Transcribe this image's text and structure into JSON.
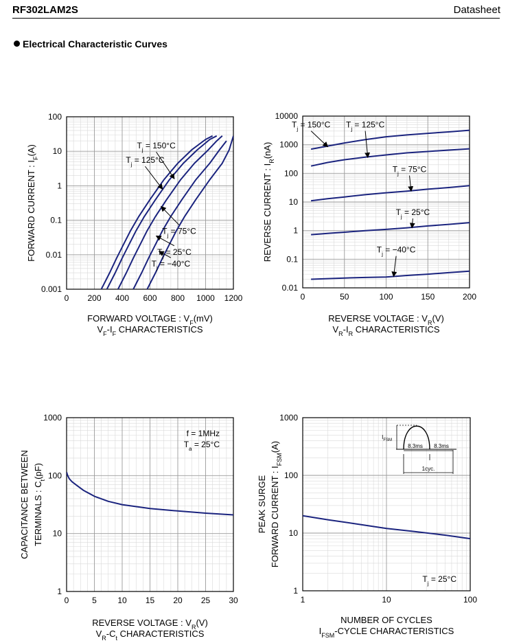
{
  "header": {
    "part_number": "RF302LAM2S",
    "doc_type": "Datasheet"
  },
  "section_title": "Electrical Characteristic Curves",
  "colors": {
    "curve": "#1a237e",
    "grid": "#9a9a9a",
    "minor_grid": "#d9d9d9",
    "axis": "#000000"
  },
  "chart_data": [
    {
      "id": "vf-if",
      "type": "line",
      "title": "VF-IF CHARACTERISTICS",
      "xlabel": "FORWARD VOLTAGE : VF(mV)",
      "ylabel": "FORWARD CURRENT : IF(A)",
      "xscale": "linear",
      "yscale": "log",
      "xlim": [
        0,
        1200
      ],
      "ylim": [
        0.001,
        100
      ],
      "xticks": [
        0,
        200,
        400,
        600,
        800,
        1000,
        1200
      ],
      "xtick_labels": [
        "0",
        "200",
        "400",
        "600",
        "800",
        "1000",
        "1200"
      ],
      "yticks": [
        0.001,
        0.01,
        0.1,
        1,
        10,
        100
      ],
      "ytick_labels": [
        "0.001",
        "0.01",
        "0.1",
        "1",
        "10",
        "100"
      ],
      "grid": true,
      "series": [
        {
          "name": "Tj = 150°C",
          "x": [
            250,
            310,
            360,
            410,
            460,
            520,
            600,
            700,
            800,
            900,
            1000,
            1050
          ],
          "y": [
            0.001,
            0.003,
            0.008,
            0.02,
            0.05,
            0.13,
            0.4,
            1.5,
            4.5,
            11,
            22,
            28
          ]
        },
        {
          "name": "Tj = 125°C",
          "x": [
            290,
            350,
            400,
            450,
            500,
            560,
            640,
            740,
            840,
            940,
            1030,
            1080
          ],
          "y": [
            0.001,
            0.003,
            0.008,
            0.02,
            0.05,
            0.13,
            0.4,
            1.5,
            4.5,
            11,
            22,
            28
          ]
        },
        {
          "name": "Tj = 75°C",
          "x": [
            370,
            430,
            480,
            530,
            580,
            640,
            720,
            820,
            920,
            1020,
            1080,
            1120
          ],
          "y": [
            0.001,
            0.003,
            0.008,
            0.02,
            0.05,
            0.13,
            0.4,
            1.5,
            4.5,
            11,
            20,
            28
          ]
        },
        {
          "name": "Tj = 25°C",
          "x": [
            480,
            540,
            590,
            640,
            690,
            750,
            830,
            930,
            1030,
            1100,
            1150
          ],
          "y": [
            0.001,
            0.003,
            0.008,
            0.02,
            0.05,
            0.13,
            0.4,
            1.5,
            4.5,
            11,
            20
          ]
        },
        {
          "name": "Tj = −40°C",
          "x": [
            580,
            640,
            690,
            740,
            790,
            850,
            930,
            1030,
            1120,
            1170,
            1200
          ],
          "y": [
            0.001,
            0.003,
            0.008,
            0.02,
            0.05,
            0.13,
            0.4,
            1.5,
            4.5,
            11,
            28
          ]
        }
      ],
      "annotations": [
        {
          "label": "Tj = 150°C",
          "tx": 645,
          "ty": 12,
          "ax": 775,
          "ay": 1.6
        },
        {
          "label": "Tj = 125°C",
          "tx": 565,
          "ty": 4.6,
          "ax": 690,
          "ay": 0.8
        },
        {
          "label": "Tj = 75°C",
          "tx": 810,
          "ty": 0.04,
          "ax": 680,
          "ay": 0.25
        },
        {
          "label": "Tj = 25°C",
          "tx": 775,
          "ty": 0.01,
          "ax": 645,
          "ay": 0.035
        },
        {
          "label": "Tj = −40°C",
          "tx": 750,
          "ty": 0.0045,
          "ax": 665,
          "ay": 0.0125
        }
      ]
    },
    {
      "id": "vr-ir",
      "type": "line",
      "title": "VR-IR CHARACTERISTICS",
      "xlabel": "REVERSE VOLTAGE : VR(V)",
      "ylabel": "REVERSE CURRENT : IR(nA)",
      "xscale": "linear",
      "yscale": "log",
      "xlim": [
        0,
        200
      ],
      "ylim": [
        0.01,
        10000
      ],
      "xticks": [
        0,
        50,
        100,
        150,
        200
      ],
      "xtick_labels": [
        "0",
        "50",
        "100",
        "150",
        "200"
      ],
      "yticks": [
        0.01,
        0.1,
        1,
        10,
        100,
        1000,
        10000
      ],
      "ytick_labels": [
        "0.01",
        "0.1",
        "1",
        "10",
        "100",
        "1000",
        "10000"
      ],
      "grid": true,
      "series": [
        {
          "name": "Tj = 150°C",
          "x": [
            10,
            30,
            50,
            75,
            100,
            125,
            150,
            175,
            200
          ],
          "y": [
            700,
            900,
            1150,
            1500,
            1900,
            2200,
            2500,
            2800,
            3200
          ]
        },
        {
          "name": "Tj = 125°C",
          "x": [
            10,
            30,
            50,
            75,
            100,
            125,
            150,
            175,
            200
          ],
          "y": [
            180,
            240,
            300,
            370,
            440,
            520,
            580,
            650,
            720
          ]
        },
        {
          "name": "Tj = 75°C",
          "x": [
            10,
            30,
            50,
            75,
            100,
            125,
            150,
            175,
            200
          ],
          "y": [
            11,
            13,
            15,
            18,
            21,
            24,
            28,
            32,
            37
          ]
        },
        {
          "name": "Tj = 25°C",
          "x": [
            10,
            30,
            50,
            75,
            100,
            125,
            150,
            175,
            200
          ],
          "y": [
            0.72,
            0.8,
            0.88,
            1.0,
            1.1,
            1.25,
            1.45,
            1.65,
            1.9
          ]
        },
        {
          "name": "Tj = −40°C",
          "x": [
            10,
            30,
            50,
            75,
            100,
            125,
            150,
            175,
            200
          ],
          "y": [
            0.02,
            0.021,
            0.022,
            0.023,
            0.024,
            0.027,
            0.03,
            0.034,
            0.038
          ]
        }
      ],
      "annotations": [
        {
          "label": "Tj = 150°C",
          "tx": 10,
          "ty": 4000,
          "ax": 30,
          "ay": 850
        },
        {
          "label": "Tj = 125°C",
          "tx": 75,
          "ty": 4000,
          "ax": 78,
          "ay": 360
        },
        {
          "label": "Tj = 75°C",
          "tx": 128,
          "ty": 110,
          "ax": 130,
          "ay": 24
        },
        {
          "label": "Tj = 25°C",
          "tx": 132,
          "ty": 3.5,
          "ax": 131,
          "ay": 1.25
        },
        {
          "label": "Tj = −40°C",
          "tx": 112,
          "ty": 0.17,
          "ax": 109,
          "ay": 0.025
        }
      ]
    },
    {
      "id": "vr-ct",
      "type": "line",
      "title": "VR-Ct CHARACTERISTICS",
      "xlabel": "REVERSE VOLTAGE : VR(V)",
      "ylabel_lines": [
        "CAPACITANCE BETWEEN",
        "TERMINALS : Ct(pF)"
      ],
      "xscale": "linear",
      "yscale": "log",
      "xlim": [
        0,
        30
      ],
      "ylim": [
        1,
        1000
      ],
      "xticks": [
        0,
        5,
        10,
        15,
        20,
        25,
        30
      ],
      "xtick_labels": [
        "0",
        "5",
        "10",
        "15",
        "20",
        "25",
        "30"
      ],
      "yticks": [
        1,
        10,
        100,
        1000
      ],
      "ytick_labels": [
        "1",
        "10",
        "100",
        "1000"
      ],
      "grid": true,
      "series": [
        {
          "name": "Ct",
          "x": [
            0,
            0.2,
            0.5,
            1,
            2,
            3,
            5,
            7.5,
            10,
            15,
            20,
            25,
            30
          ],
          "y": [
            115,
            100,
            88,
            78,
            66,
            56,
            44,
            36,
            31.5,
            27,
            24.5,
            22.5,
            21
          ]
        }
      ],
      "legend_lines": [
        "f = 1MHz",
        "Ta = 25°C"
      ],
      "legend_position": "top-right"
    },
    {
      "id": "ifsm-cycle",
      "type": "line",
      "title": "IFSM-CYCLE CHARACTERISTICS",
      "xlabel": "NUMBER OF CYCLES",
      "ylabel_lines": [
        "PEAK SURGE",
        "FORWARD CURRENT : IFSM(A)"
      ],
      "xscale": "log",
      "yscale": "log",
      "xlim": [
        1,
        100
      ],
      "ylim": [
        1,
        1000
      ],
      "xticks": [
        1,
        10,
        100
      ],
      "xtick_labels": [
        "1",
        "10",
        "100"
      ],
      "yticks": [
        1,
        10,
        100,
        1000
      ],
      "ytick_labels": [
        "1",
        "10",
        "100",
        "1000"
      ],
      "grid": true,
      "series": [
        {
          "name": "IFSM",
          "x": [
            1,
            2,
            5,
            10,
            20,
            50,
            100
          ],
          "y": [
            20,
            17,
            14,
            12,
            10.8,
            9.2,
            8
          ]
        }
      ],
      "note": "Tj = 25°C",
      "inset": {
        "label_ifsm": "IFSM",
        "label_half_cycle_1": "8.3ms",
        "label_half_cycle_2": "8.3ms",
        "label_cycle": "1cyc."
      }
    }
  ]
}
